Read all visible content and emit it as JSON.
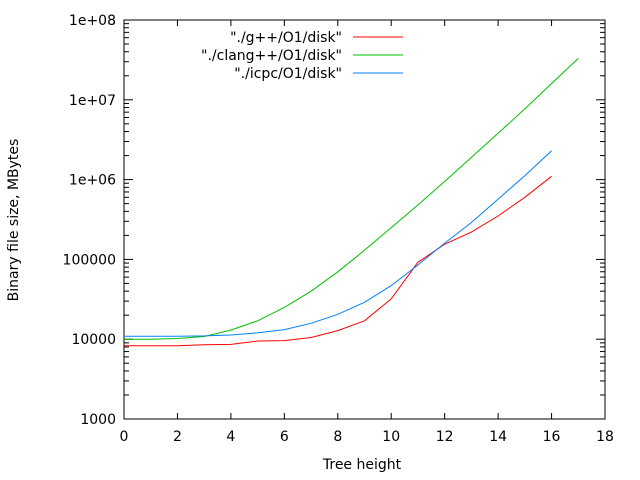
{
  "chart_data": {
    "type": "line",
    "title": "",
    "xlabel": "Tree height",
    "ylabel": "Binary file size, MBytes",
    "xlim": [
      0,
      18
    ],
    "ylim": [
      1000,
      100000000
    ],
    "y_scale": "log",
    "x_ticks": [
      0,
      2,
      4,
      6,
      8,
      10,
      12,
      14,
      16,
      18
    ],
    "x_tick_labels": [
      "0",
      "2",
      "4",
      "6",
      "8",
      "10",
      "12",
      "14",
      "16",
      "18"
    ],
    "y_ticks": [
      1000,
      10000,
      100000,
      1000000,
      10000000,
      100000000
    ],
    "y_tick_labels": [
      "1000",
      "10000",
      "100000",
      "1e+06",
      "1e+07",
      "1e+08"
    ],
    "grid": false,
    "legend_position": "top-center",
    "series": [
      {
        "name": "\"./g++/O1/disk\"",
        "color": "#ff0000",
        "x": [
          0,
          1,
          2,
          3,
          4,
          5,
          6,
          7,
          8,
          9,
          10,
          11,
          12,
          13,
          14,
          15,
          16
        ],
        "y": [
          8300,
          8300,
          8300,
          8500,
          8600,
          9500,
          9600,
          10500,
          12800,
          17000,
          32000,
          92000,
          155000,
          220000,
          350000,
          600000,
          1100000
        ]
      },
      {
        "name": "\"./clang++/O1/disk\"",
        "color": "#00c000",
        "x": [
          0,
          1,
          2,
          3,
          4,
          5,
          6,
          7,
          8,
          9,
          10,
          11,
          12,
          13,
          14,
          15,
          16,
          17
        ],
        "y": [
          10000,
          10000,
          10200,
          10800,
          13000,
          17000,
          25000,
          40000,
          70000,
          130000,
          250000,
          480000,
          950000,
          1900000,
          3800000,
          7700000,
          16000000,
          33000000
        ]
      },
      {
        "name": "\"./icpc/O1/disk\"",
        "color": "#0080ff",
        "x": [
          0,
          1,
          2,
          3,
          4,
          5,
          6,
          7,
          8,
          9,
          10,
          11,
          12,
          13,
          14,
          15,
          16
        ],
        "y": [
          10900,
          10900,
          10900,
          11000,
          11300,
          12000,
          13200,
          15800,
          20500,
          29000,
          47000,
          85000,
          160000,
          290000,
          570000,
          1120000,
          2300000
        ]
      }
    ]
  }
}
